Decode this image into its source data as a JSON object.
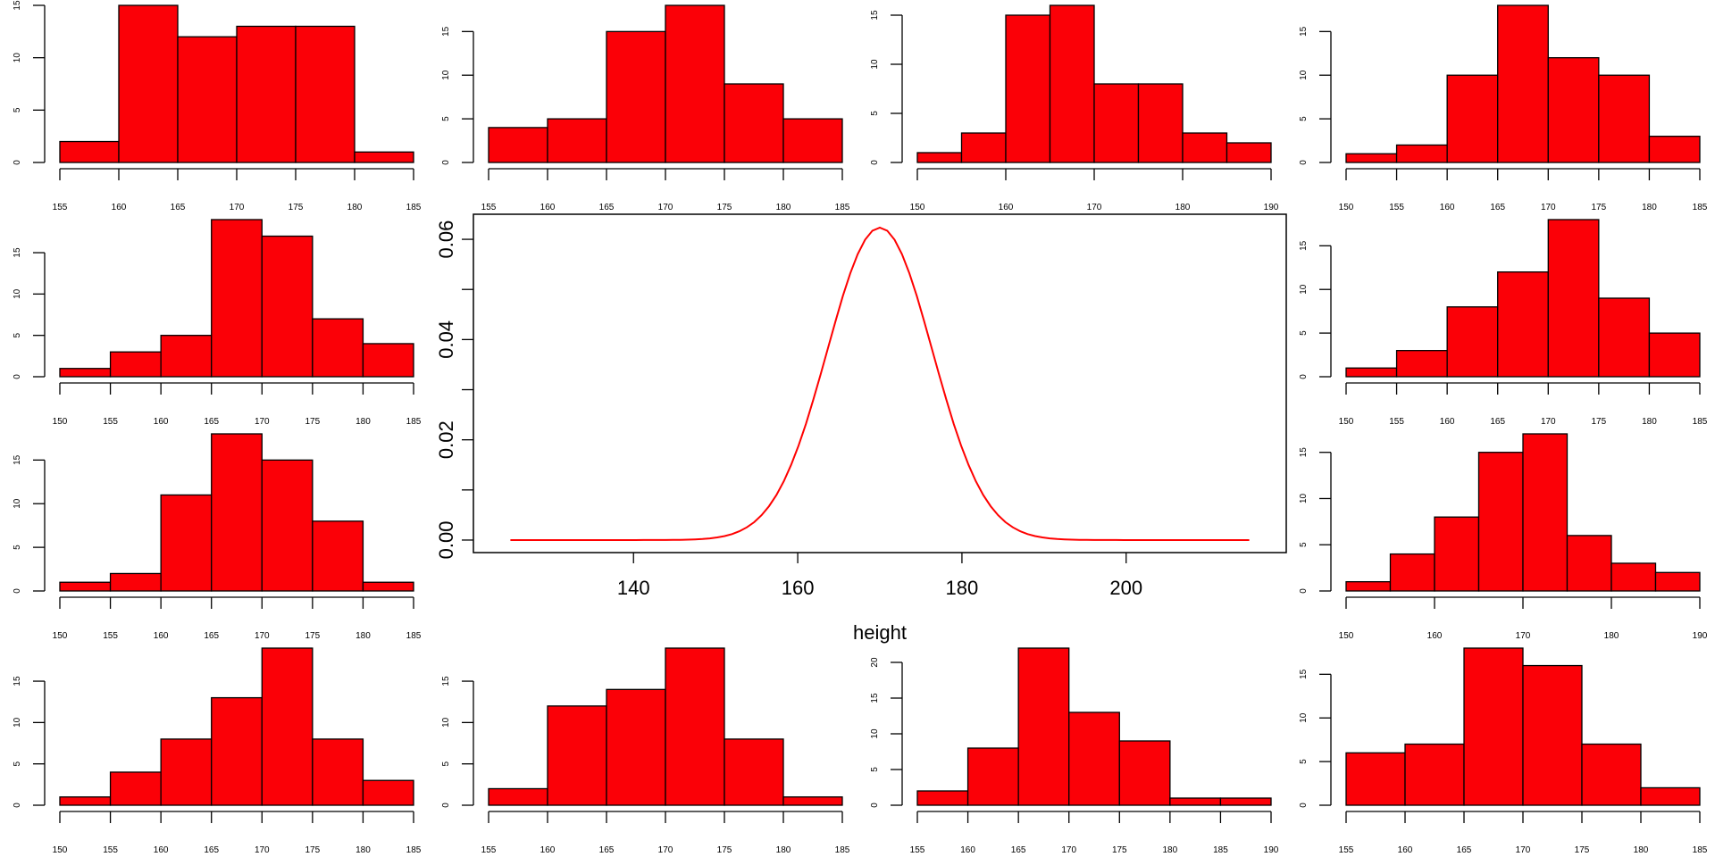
{
  "colors": {
    "bar_fill": "#fb0007",
    "bar_stroke": "#000000",
    "curve": "#ff0000",
    "axis": "#000000"
  },
  "chart_data": [
    {
      "type": "bar",
      "panel": "row1-col1",
      "breaks": [
        155,
        160,
        165,
        170,
        175,
        180,
        185
      ],
      "values": [
        2,
        15,
        12,
        13,
        13,
        1
      ],
      "xticks": [
        155,
        160,
        165,
        170,
        175,
        180,
        185
      ],
      "xtick_labels": [
        "155",
        "160",
        "165",
        "170",
        "175",
        "180",
        "185"
      ],
      "yticks": [
        0,
        5,
        10,
        15
      ],
      "ytick_labels": [
        "0",
        "5",
        "10",
        "15"
      ]
    },
    {
      "type": "bar",
      "panel": "row1-col2",
      "breaks": [
        155,
        160,
        165,
        170,
        175,
        180,
        185
      ],
      "values": [
        4,
        5,
        15,
        18,
        9,
        5
      ],
      "xticks": [
        155,
        160,
        165,
        170,
        175,
        180,
        185
      ],
      "xtick_labels": [
        "155",
        "160",
        "165",
        "170",
        "175",
        "180",
        "185"
      ],
      "yticks": [
        0,
        5,
        10,
        15
      ],
      "ytick_labels": [
        "0",
        "5",
        "10",
        "15"
      ]
    },
    {
      "type": "bar",
      "panel": "row1-col3",
      "breaks": [
        150,
        155,
        160,
        165,
        170,
        175,
        180,
        185,
        190
      ],
      "values": [
        1,
        3,
        15,
        16,
        8,
        8,
        3,
        2
      ],
      "xticks": [
        150,
        160,
        170,
        180,
        190
      ],
      "xtick_labels": [
        "150",
        "160",
        "170",
        "180",
        "190"
      ],
      "yticks": [
        0,
        5,
        10,
        15
      ],
      "ytick_labels": [
        "0",
        "5",
        "10",
        "15"
      ]
    },
    {
      "type": "bar",
      "panel": "row1-col4",
      "breaks": [
        150,
        155,
        160,
        165,
        170,
        175,
        180,
        185
      ],
      "values": [
        1,
        2,
        10,
        18,
        12,
        10,
        3
      ],
      "xticks": [
        150,
        155,
        160,
        165,
        170,
        175,
        180,
        185
      ],
      "xtick_labels": [
        "150",
        "155",
        "160",
        "165",
        "170",
        "175",
        "180",
        "185"
      ],
      "yticks": [
        0,
        5,
        10,
        15
      ],
      "ytick_labels": [
        "0",
        "5",
        "10",
        "15"
      ]
    },
    {
      "type": "bar",
      "panel": "row2-col1",
      "breaks": [
        150,
        155,
        160,
        165,
        170,
        175,
        180,
        185
      ],
      "values": [
        1,
        3,
        5,
        19,
        17,
        7,
        4
      ],
      "xticks": [
        150,
        155,
        160,
        165,
        170,
        175,
        180,
        185
      ],
      "xtick_labels": [
        "150",
        "155",
        "160",
        "165",
        "170",
        "175",
        "180",
        "185"
      ],
      "yticks": [
        0,
        5,
        10,
        15
      ],
      "ytick_labels": [
        "0",
        "5",
        "10",
        "15"
      ]
    },
    {
      "type": "bar",
      "panel": "row2-col4",
      "breaks": [
        150,
        155,
        160,
        165,
        170,
        175,
        180,
        185
      ],
      "values": [
        1,
        3,
        8,
        12,
        18,
        9,
        5
      ],
      "xticks": [
        150,
        155,
        160,
        165,
        170,
        175,
        180,
        185
      ],
      "xtick_labels": [
        "150",
        "155",
        "160",
        "165",
        "170",
        "175",
        "180",
        "185"
      ],
      "yticks": [
        0,
        5,
        10,
        15
      ],
      "ytick_labels": [
        "0",
        "5",
        "10",
        "15"
      ]
    },
    {
      "type": "bar",
      "panel": "row3-col1",
      "breaks": [
        150,
        155,
        160,
        165,
        170,
        175,
        180,
        185
      ],
      "values": [
        1,
        2,
        11,
        18,
        15,
        8,
        1
      ],
      "xticks": [
        150,
        155,
        160,
        165,
        170,
        175,
        180,
        185
      ],
      "xtick_labels": [
        "150",
        "155",
        "160",
        "165",
        "170",
        "175",
        "180",
        "185"
      ],
      "yticks": [
        0,
        5,
        10,
        15
      ],
      "ytick_labels": [
        "0",
        "5",
        "10",
        "15"
      ]
    },
    {
      "type": "bar",
      "panel": "row3-col4",
      "breaks": [
        150,
        155,
        160,
        165,
        170,
        175,
        180,
        185,
        190
      ],
      "values": [
        1,
        4,
        8,
        15,
        17,
        6,
        3,
        2
      ],
      "xticks": [
        150,
        160,
        170,
        180,
        190
      ],
      "xtick_labels": [
        "150",
        "160",
        "170",
        "180",
        "190"
      ],
      "yticks": [
        0,
        5,
        10,
        15
      ],
      "ytick_labels": [
        "0",
        "5",
        "10",
        "15"
      ]
    },
    {
      "type": "bar",
      "panel": "row4-col1",
      "breaks": [
        150,
        155,
        160,
        165,
        170,
        175,
        180,
        185
      ],
      "values": [
        1,
        4,
        8,
        13,
        19,
        8,
        3
      ],
      "xticks": [
        150,
        155,
        160,
        165,
        170,
        175,
        180,
        185
      ],
      "xtick_labels": [
        "150",
        "155",
        "160",
        "165",
        "170",
        "175",
        "180",
        "185"
      ],
      "yticks": [
        0,
        5,
        10,
        15
      ],
      "ytick_labels": [
        "0",
        "5",
        "10",
        "15"
      ]
    },
    {
      "type": "bar",
      "panel": "row4-col2",
      "breaks": [
        155,
        160,
        165,
        170,
        175,
        180,
        185
      ],
      "values": [
        2,
        12,
        14,
        19,
        8,
        1
      ],
      "xticks": [
        155,
        160,
        165,
        170,
        175,
        180,
        185
      ],
      "xtick_labels": [
        "155",
        "160",
        "165",
        "170",
        "175",
        "180",
        "185"
      ],
      "yticks": [
        0,
        5,
        10,
        15
      ],
      "ytick_labels": [
        "0",
        "5",
        "10",
        "15"
      ]
    },
    {
      "type": "bar",
      "panel": "row4-col3",
      "breaks": [
        155,
        160,
        165,
        170,
        175,
        180,
        185,
        190
      ],
      "values": [
        2,
        8,
        22,
        13,
        9,
        1,
        1
      ],
      "xticks": [
        155,
        160,
        165,
        170,
        175,
        180,
        185,
        190
      ],
      "xtick_labels": [
        "155",
        "160",
        "165",
        "170",
        "175",
        "180",
        "185",
        "190"
      ],
      "yticks": [
        0,
        5,
        10,
        15,
        20
      ],
      "ytick_labels": [
        "0",
        "5",
        "10",
        "15",
        "20"
      ]
    },
    {
      "type": "bar",
      "panel": "row4-col4",
      "breaks": [
        155,
        160,
        165,
        170,
        175,
        180,
        185
      ],
      "values": [
        6,
        7,
        18,
        16,
        7,
        2
      ],
      "xticks": [
        155,
        160,
        165,
        170,
        175,
        180,
        185
      ],
      "xtick_labels": [
        "155",
        "160",
        "165",
        "170",
        "175",
        "180",
        "185"
      ],
      "yticks": [
        0,
        5,
        10,
        15
      ],
      "ytick_labels": [
        "0",
        "5",
        "10",
        "15"
      ]
    },
    {
      "type": "line",
      "panel": "center",
      "function": "normal density",
      "mean": 170,
      "sd": 6.4,
      "x_range": [
        125,
        215
      ],
      "xlabel": "height",
      "ylabel": "",
      "xlim": [
        120.5,
        219.5
      ],
      "ylim": [
        -0.0025,
        0.065
      ],
      "xticks": [
        140,
        160,
        180,
        200
      ],
      "xtick_labels": [
        "140",
        "160",
        "180",
        "200"
      ],
      "yticks": [
        0,
        0.01,
        0.02,
        0.03,
        0.04,
        0.05,
        0.06
      ],
      "ytick_labels": [
        "0.00",
        "",
        "0.02",
        "",
        "0.04",
        "",
        "0.06"
      ]
    }
  ]
}
